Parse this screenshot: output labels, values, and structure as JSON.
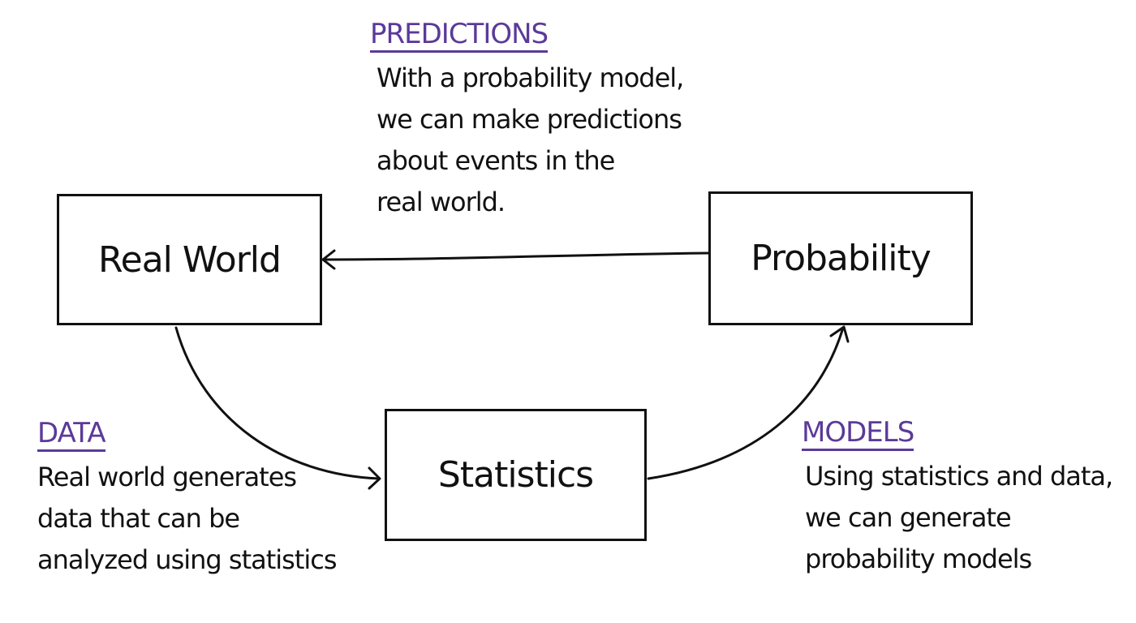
{
  "colors": {
    "heading": "#5b3a99",
    "ink": "#111111"
  },
  "boxes": {
    "real_world": "Real World",
    "probability": "Probability",
    "statistics": "Statistics"
  },
  "annotations": {
    "predictions": {
      "heading": "PREDICTIONS",
      "lines": [
        "With a probability model,",
        "we can make predictions",
        "about events in the",
        "real world."
      ]
    },
    "data": {
      "heading": "DATA",
      "lines": [
        "Real world generates",
        "data that can be",
        "analyzed using statistics"
      ]
    },
    "models": {
      "heading": "MODELS",
      "lines": [
        "Using statistics and data,",
        "we can generate",
        "probability models"
      ]
    }
  },
  "arrows": [
    {
      "from": "probability",
      "to": "real_world",
      "label": "predictions"
    },
    {
      "from": "real_world",
      "to": "statistics",
      "label": "data"
    },
    {
      "from": "statistics",
      "to": "probability",
      "label": "models"
    }
  ]
}
